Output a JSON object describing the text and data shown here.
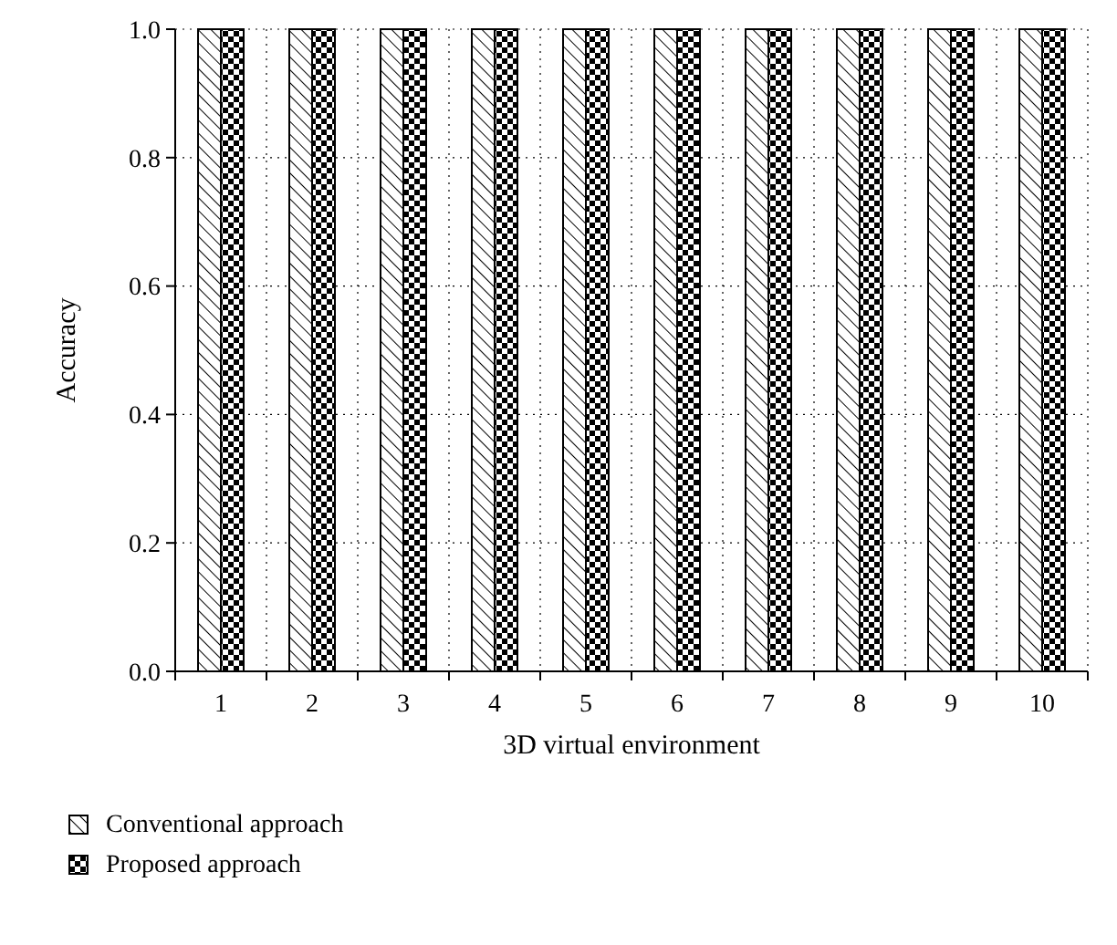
{
  "chart_data": {
    "type": "bar",
    "xlabel": "3D virtual environment",
    "ylabel": "Accuracy",
    "categories": [
      "1",
      "2",
      "3",
      "4",
      "5",
      "6",
      "7",
      "8",
      "9",
      "10"
    ],
    "series": [
      {
        "name": "Conventional approach",
        "color": "#000000",
        "values": [
          1,
          1,
          1,
          1,
          1,
          1,
          1,
          1,
          1,
          1
        ]
      },
      {
        "name": "Proposed approach",
        "color": "#000000",
        "values": [
          1,
          1,
          1,
          1,
          1,
          1,
          1,
          1,
          1,
          1
        ]
      }
    ],
    "ylim": [
      0,
      1
    ],
    "yticks": [
      {
        "value": 0,
        "label": "0.0"
      },
      {
        "value": 0.2,
        "label": "0.2"
      },
      {
        "value": 0.4,
        "label": "0.4"
      },
      {
        "value": 0.6,
        "label": "0.6"
      },
      {
        "value": 0.8,
        "label": "0.8"
      },
      {
        "value": 1,
        "label": "1.0"
      }
    ],
    "grid": true,
    "legend": "bottom left"
  }
}
